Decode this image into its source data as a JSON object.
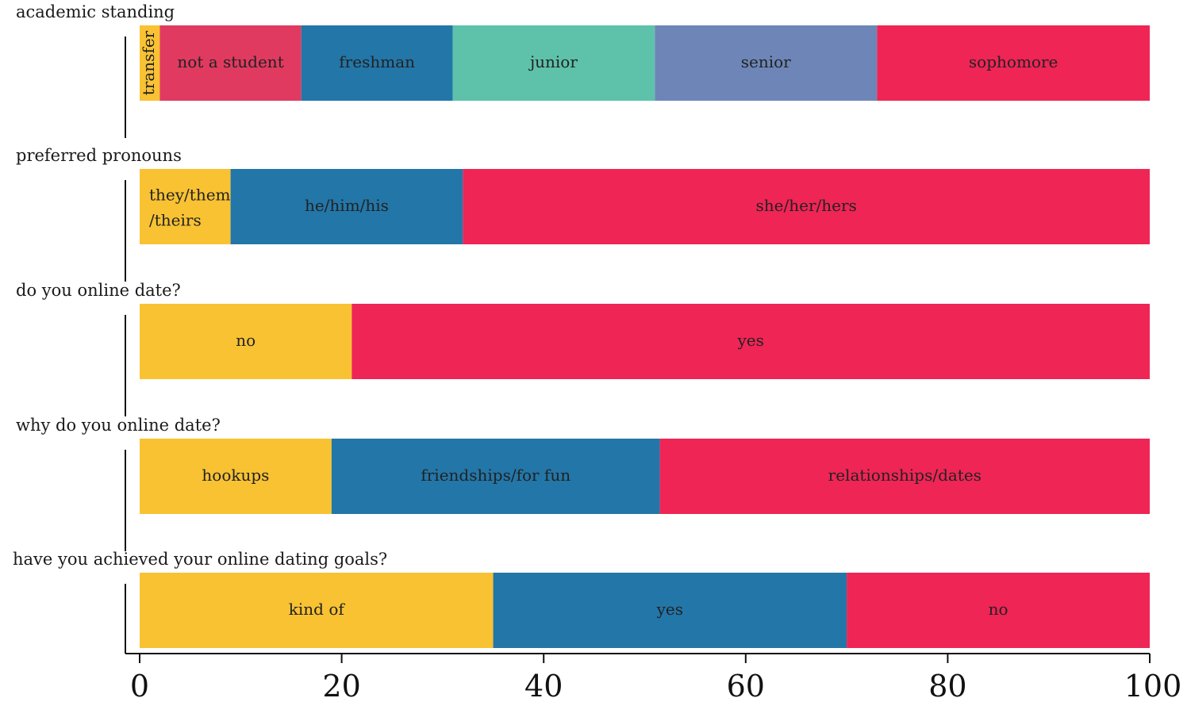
{
  "chart_data": {
    "type": "bar",
    "orientation": "horizontal",
    "stacked": true,
    "xlim": [
      0,
      100
    ],
    "xticks": [
      0,
      20,
      40,
      60,
      80,
      100
    ],
    "grid": false,
    "bars": [
      {
        "question": "academic standing",
        "segments": [
          {
            "label": "transfer",
            "value": 2,
            "color": "#f8c233",
            "rotated": true
          },
          {
            "label": "not a student",
            "value": 14,
            "color": "#e03a60"
          },
          {
            "label": "freshman",
            "value": 15,
            "color": "#2376a8"
          },
          {
            "label": "junior",
            "value": 20,
            "color": "#5ec2aa"
          },
          {
            "label": "senior",
            "value": 22,
            "color": "#6d86b7"
          },
          {
            "label": "sophomore",
            "value": 27,
            "color": "#ef2555"
          }
        ]
      },
      {
        "question": "preferred pronouns",
        "segments": [
          {
            "label": "they/them\n/theirs",
            "value": 9,
            "color": "#f8c233"
          },
          {
            "label": "he/him/his",
            "value": 23,
            "color": "#2376a8"
          },
          {
            "label": "she/her/hers",
            "value": 68,
            "color": "#ef2555"
          }
        ]
      },
      {
        "question": "do you online date?",
        "segments": [
          {
            "label": "no",
            "value": 21,
            "color": "#f8c233"
          },
          {
            "label": "yes",
            "value": 79,
            "color": "#ef2555"
          }
        ]
      },
      {
        "question": "why do you online date?",
        "segments": [
          {
            "label": "hookups",
            "value": 19,
            "color": "#f8c233"
          },
          {
            "label": "friendships/for fun",
            "value": 32.5,
            "color": "#2376a8"
          },
          {
            "label": "relationships/dates",
            "value": 48.5,
            "color": "#ef2555"
          }
        ]
      },
      {
        "question": "have you achieved your online dating goals?",
        "segments": [
          {
            "label": "kind of",
            "value": 35,
            "color": "#f8c233"
          },
          {
            "label": "yes",
            "value": 35,
            "color": "#2376a8"
          },
          {
            "label": "no",
            "value": 30,
            "color": "#ef2555"
          }
        ]
      }
    ]
  }
}
